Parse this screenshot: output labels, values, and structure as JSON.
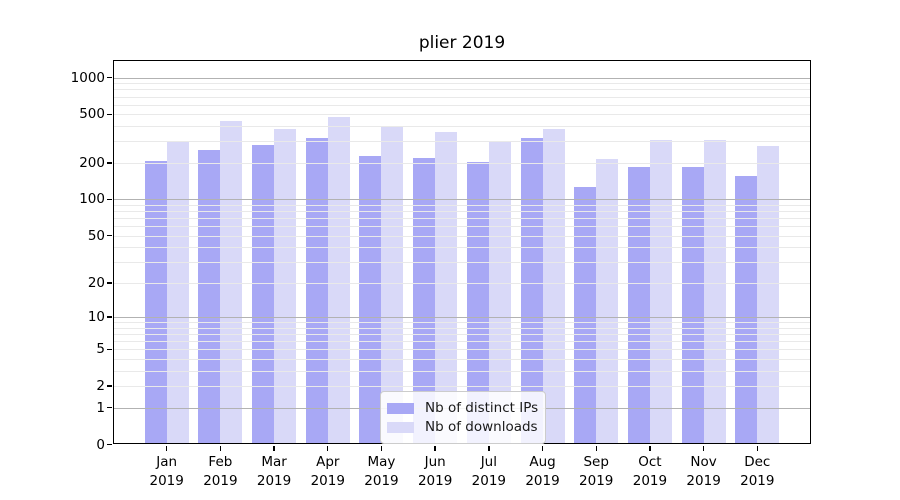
{
  "chart_data": {
    "type": "bar",
    "title": "plier 2019",
    "categories": [
      "Jan",
      "Feb",
      "Mar",
      "Apr",
      "May",
      "Jun",
      "Jul",
      "Aug",
      "Sep",
      "Oct",
      "Nov",
      "Dec"
    ],
    "xtick_year": "2019",
    "series": [
      {
        "name": "Nb of distinct IPs",
        "color": "#a8a8f5",
        "values": [
          208,
          256,
          283,
          317,
          229,
          220,
          202,
          323,
          127,
          185,
          186,
          157
        ]
      },
      {
        "name": "Nb of downloads",
        "color": "#d9d9f8",
        "values": [
          303,
          443,
          378,
          472,
          392,
          361,
          305,
          382,
          215,
          310,
          311,
          276
        ]
      }
    ],
    "y_scale": "log1p",
    "yticks": [
      1000,
      500,
      200,
      100,
      50,
      20,
      10,
      5,
      2,
      1,
      0
    ],
    "ylim": [
      0,
      1400
    ],
    "grid": true,
    "legend_position": "lower center"
  },
  "colors": {
    "major_grid": "#b2b2b2",
    "minor_grid": "#e9e9e9",
    "spine": "#000000",
    "legend_border": "#cccccc"
  }
}
